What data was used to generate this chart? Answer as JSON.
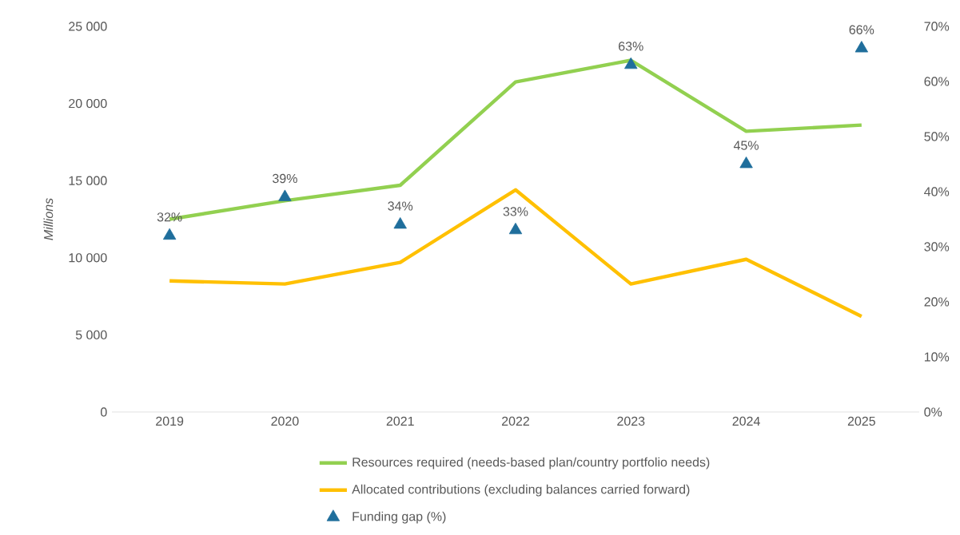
{
  "chart_data": {
    "type": "line",
    "categories": [
      "2019",
      "2020",
      "2021",
      "2022",
      "2023",
      "2024",
      "2025"
    ],
    "ylabel": "*Millions*",
    "ylim": [
      0,
      25000
    ],
    "yticks": [
      {
        "value": 0,
        "label": "0"
      },
      {
        "value": 5000,
        "label": "5 000"
      },
      {
        "value": 10000,
        "label": "10 000"
      },
      {
        "value": 15000,
        "label": "15 000"
      },
      {
        "value": 20000,
        "label": "20 000"
      },
      {
        "value": 25000,
        "label": "25 000"
      }
    ],
    "y2lim": [
      0,
      70
    ],
    "y2ticks": [
      {
        "value": 0,
        "label": "0%"
      },
      {
        "value": 10,
        "label": "10%"
      },
      {
        "value": 20,
        "label": "20%"
      },
      {
        "value": 30,
        "label": "30%"
      },
      {
        "value": 40,
        "label": "40%"
      },
      {
        "value": 50,
        "label": "50%"
      },
      {
        "value": 60,
        "label": "60%"
      },
      {
        "value": 70,
        "label": "70%"
      }
    ],
    "legend": "bottom",
    "series": [
      {
        "name": "Resources required (needs-based plan/country portfolio needs)",
        "color": "#92d050",
        "values": [
          12500,
          13700,
          14700,
          21400,
          22800,
          18200,
          18600
        ]
      },
      {
        "name": "Allocated contributions (excluding balances carried forward)",
        "color": "#ffc000",
        "values": [
          8500,
          8300,
          9700,
          14400,
          8300,
          9900,
          6200
        ]
      },
      {
        "name": "Funding gap (%)",
        "type": "scatter",
        "axis": "y2",
        "marker": "triangle",
        "color": "#1f6e9c",
        "values": [
          32,
          39,
          34,
          33,
          63,
          45,
          66
        ],
        "value_labels": [
          "32%",
          "39%",
          "34%",
          "33%",
          "63%",
          "45%",
          "66%"
        ]
      }
    ]
  }
}
